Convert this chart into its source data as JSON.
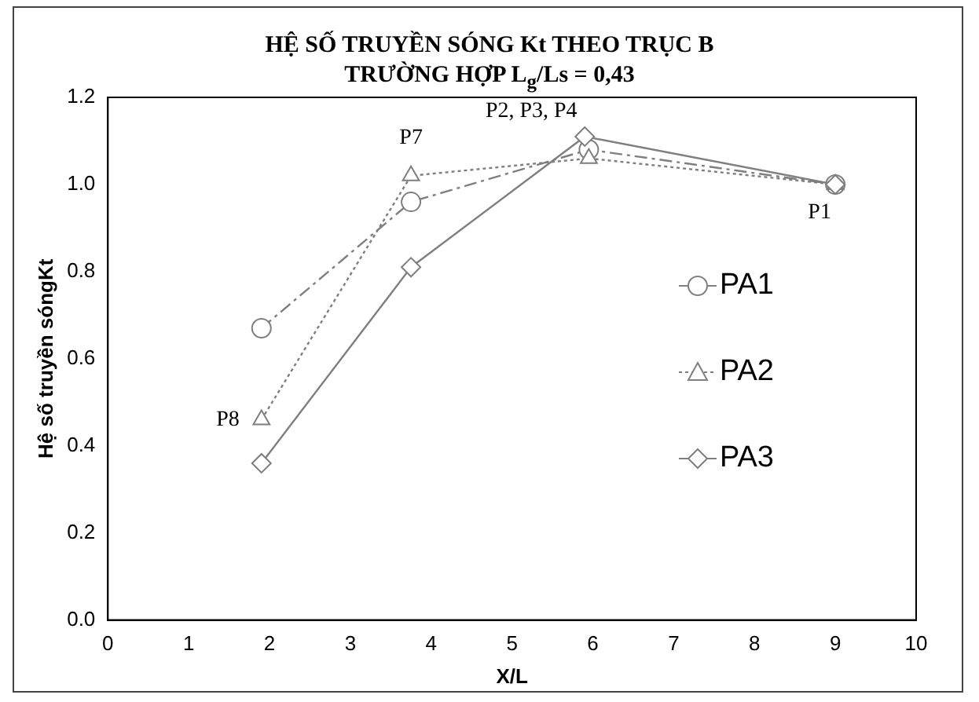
{
  "chart_data": {
    "type": "line",
    "title": "HỆ SỐ TRUYỀN SÓNG Kt THEO TRỤC B\nTRƯỜNG HỢP L$_{g}$/Ls = 0,43",
    "xlabel": "X/L",
    "ylabel": "Hệ số truyền sóngKt",
    "xlim": [
      0,
      10
    ],
    "xticks": [
      0,
      1,
      2,
      3,
      4,
      5,
      6,
      7,
      8,
      9,
      10
    ],
    "ylim": [
      0,
      1.2
    ],
    "yticks": [
      {
        "value": 0,
        "label": "0.0"
      },
      {
        "value": 0.2,
        "label": "0.2"
      },
      {
        "value": 0.4,
        "label": "0.4"
      },
      {
        "value": 0.6,
        "label": "0.6"
      },
      {
        "value": 0.8,
        "label": "0.8"
      },
      {
        "value": 1,
        "label": "1.0"
      },
      {
        "value": 1.2,
        "label": "1.2"
      }
    ],
    "grid": false,
    "legend": "right",
    "series": [
      {
        "name": "PA1",
        "color": "#7f7f7f",
        "marker": "circle",
        "line_style": "dashdot",
        "x": [
          1.9,
          3.75,
          5.95,
          9
        ],
        "values": [
          0.67,
          0.96,
          1.08,
          1.0
        ]
      },
      {
        "name": "PA2",
        "color": "#7f7f7f",
        "marker": "triangle",
        "line_style": "dotted",
        "x": [
          1.9,
          3.75,
          5.95,
          9
        ],
        "values": [
          0.46,
          1.02,
          1.06,
          1.0
        ]
      },
      {
        "name": "PA3",
        "color": "#7f7f7f",
        "marker": "diamond",
        "line_style": "solid",
        "x": [
          1.9,
          3.75,
          5.9,
          9
        ],
        "values": [
          0.36,
          0.81,
          1.11,
          1.0
        ]
      }
    ],
    "annotations": [
      {
        "text": "P7",
        "x": 3.75,
        "y": 1.02
      },
      {
        "text": "P2, P3, P4",
        "x": 5.9,
        "y": 1.11
      },
      {
        "text": "P1",
        "x": 9,
        "y": 1.0
      },
      {
        "text": "P8",
        "x": 1.9,
        "y": 0.46
      }
    ]
  }
}
